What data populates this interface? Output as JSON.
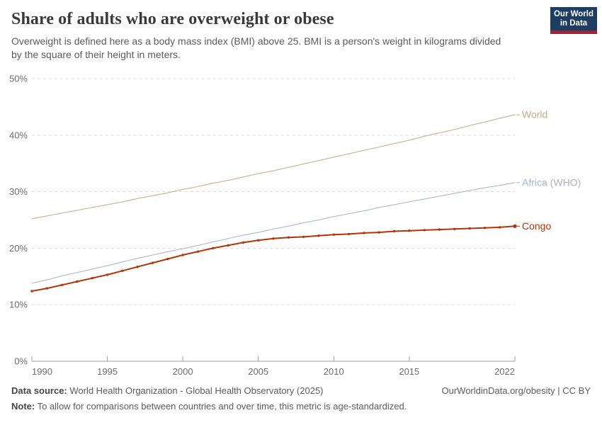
{
  "header": {
    "title": "Share of adults who are overweight or obese",
    "subtitle": "Overweight is defined here as a body mass index (BMI) above 25. BMI is a person's weight in kilograms divided\nby the square of their height in meters.",
    "logo": {
      "line1": "Our World",
      "line2": "in Data",
      "bg_color": "#1d3d63",
      "accent_color": "#a02639"
    }
  },
  "chart_data": {
    "type": "line",
    "title": "Share of adults who are overweight or obese",
    "xlabel": "",
    "ylabel": "",
    "xlim": [
      1990,
      2022
    ],
    "ylim": [
      0,
      50
    ],
    "grid": "horizontal-dashed",
    "legend_position": "end-of-line-labels-right",
    "x_ticks": [
      1990,
      1995,
      2000,
      2005,
      2010,
      2015,
      2022
    ],
    "y_ticks": [
      0,
      10,
      20,
      30,
      40,
      50
    ],
    "y_tick_suffix": "%",
    "years": [
      1990,
      1991,
      1992,
      1993,
      1994,
      1995,
      1996,
      1997,
      1998,
      1999,
      2000,
      2001,
      2002,
      2003,
      2004,
      2005,
      2006,
      2007,
      2008,
      2009,
      2010,
      2011,
      2012,
      2013,
      2014,
      2015,
      2016,
      2017,
      2018,
      2019,
      2020,
      2021,
      2022
    ],
    "series": [
      {
        "name": "World",
        "label": "World",
        "label_suffix": "",
        "color": "#c9a884",
        "stroke_width": 1,
        "markers": false,
        "values": [
          25.2,
          25.7,
          26.2,
          26.7,
          27.2,
          27.7,
          28.2,
          28.8,
          29.3,
          29.8,
          30.4,
          30.9,
          31.5,
          32.0,
          32.6,
          33.2,
          33.7,
          34.3,
          34.9,
          35.5,
          36.1,
          36.7,
          37.3,
          37.9,
          38.5,
          39.1,
          39.8,
          40.4,
          41.0,
          41.7,
          42.3,
          43.0,
          43.6
        ]
      },
      {
        "name": "Africa (WHO)",
        "label": "Africa",
        "label_suffix": " (WHO)",
        "color": "#9fb5d3",
        "suffix_color": "#a8b2bd",
        "stroke_width": 1,
        "markers": false,
        "values": [
          13.8,
          14.4,
          15.1,
          15.7,
          16.3,
          16.9,
          17.6,
          18.2,
          18.8,
          19.4,
          19.9,
          20.5,
          21.1,
          21.7,
          22.3,
          22.8,
          23.4,
          23.9,
          24.5,
          25.0,
          25.6,
          26.1,
          26.6,
          27.2,
          27.7,
          28.2,
          28.7,
          29.2,
          29.7,
          30.2,
          30.7,
          31.1,
          31.6
        ]
      },
      {
        "name": "Congo",
        "label": "Congo",
        "label_suffix": "",
        "color": "#b13507",
        "stroke_width": 2,
        "markers": true,
        "values": [
          12.4,
          12.9,
          13.5,
          14.1,
          14.7,
          15.3,
          16.0,
          16.7,
          17.4,
          18.1,
          18.8,
          19.4,
          20.0,
          20.5,
          21.0,
          21.4,
          21.7,
          21.9,
          22.0,
          22.2,
          22.4,
          22.5,
          22.7,
          22.8,
          23.0,
          23.1,
          23.2,
          23.3,
          23.4,
          23.5,
          23.6,
          23.7,
          23.9
        ]
      }
    ],
    "colors": {
      "gridline": "#d9d9d9",
      "axis": "#9e9e9e",
      "tick_label": "#6b6b6b"
    }
  },
  "footer": {
    "source_label": "Data source:",
    "source_text": " World Health Organization - Global Health Observatory (2025)",
    "link": "OurWorldinData.org/obesity | CC BY",
    "note_label": "Note:",
    "note_text": " To allow for comparisons between countries and over time, this metric is age-standardized."
  }
}
